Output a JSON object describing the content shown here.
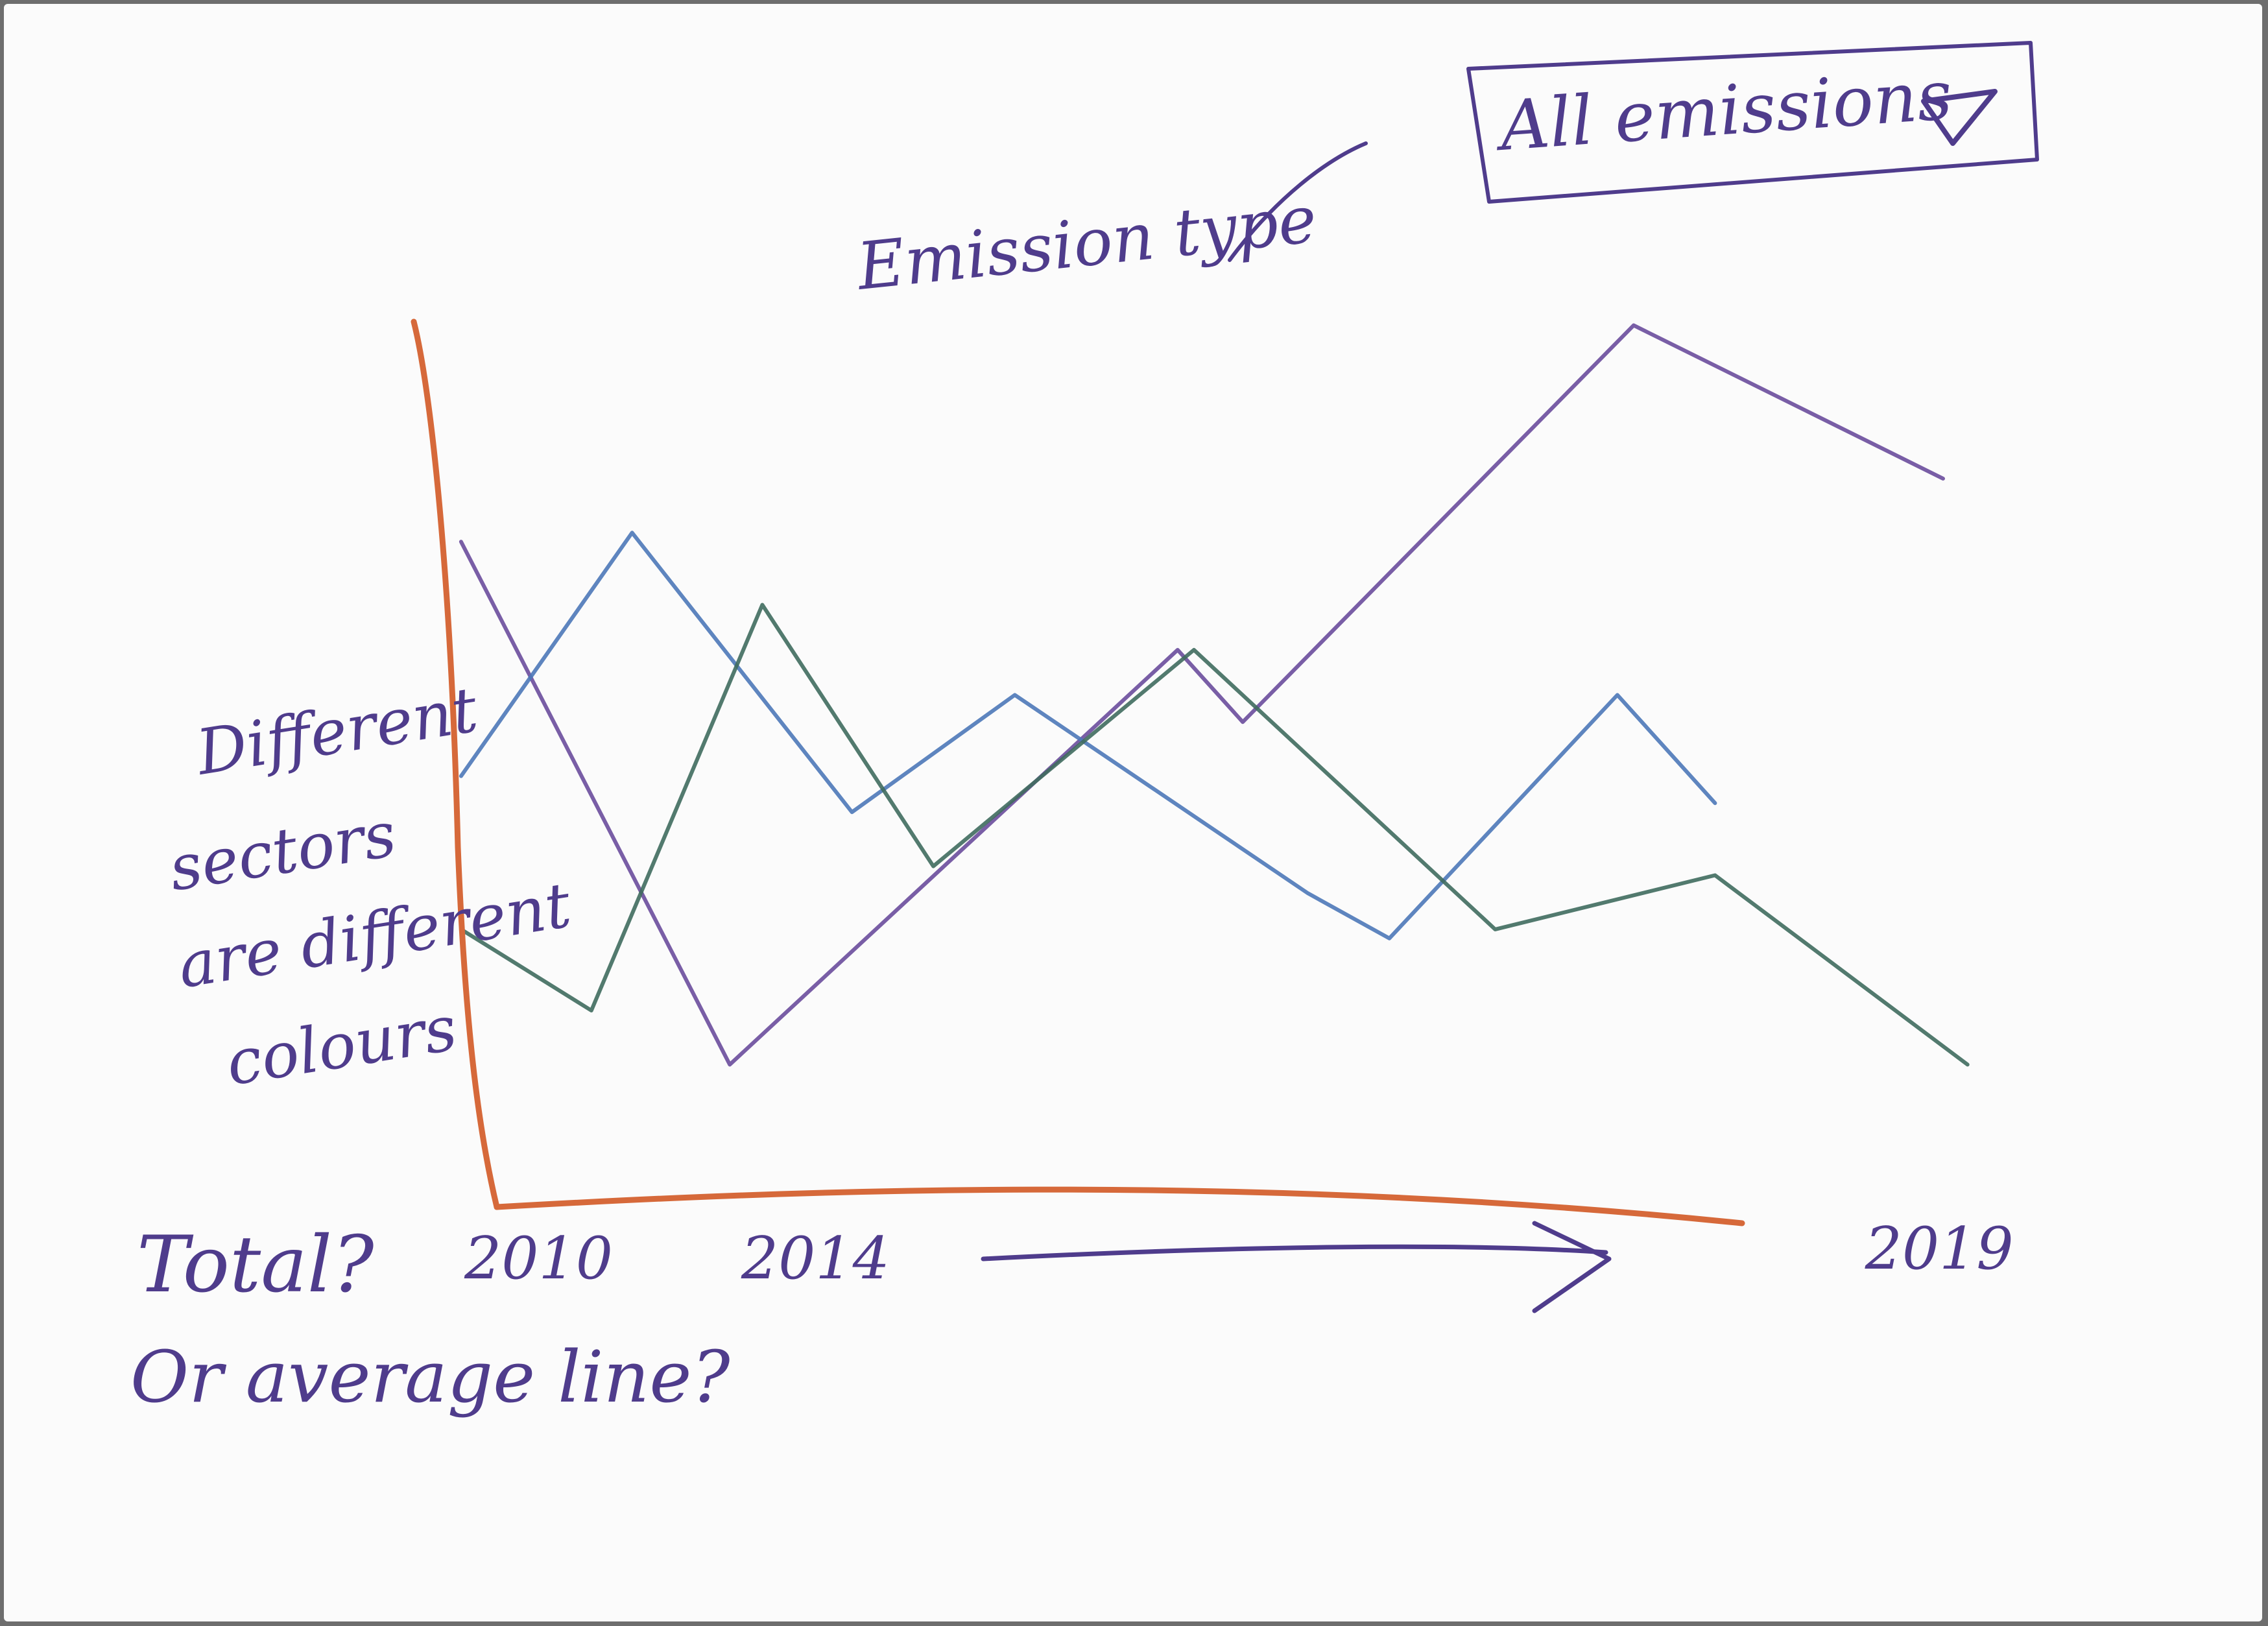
{
  "dropdown": {
    "selected": "All emissions",
    "icon": "triangle-down-icon"
  },
  "annotations": {
    "dropdown_note": "Emission type",
    "series_note_lines": [
      "Different",
      "sectors",
      "are different",
      "colours"
    ],
    "total_note": "Total?",
    "average_note": "Or average line?"
  },
  "colors": {
    "axis": "#d6693a",
    "ink": "#4f3c8c",
    "series_purple": "#6a4c9c",
    "series_blue": "#4d78b8",
    "series_green": "#3f6b5e"
  },
  "chart_data": {
    "type": "line",
    "title": "",
    "xlabel": "",
    "ylabel": "",
    "grid": false,
    "legend": "none",
    "x_ticks": [
      "2010",
      "2014",
      "2019"
    ],
    "x_range": [
      2010,
      2019
    ],
    "y_range": [
      0,
      100
    ],
    "series": [
      {
        "color": "#6a4c9c",
        "x": [
          2009.9,
          2011.55,
          2014.3,
          2014.7,
          2017.1,
          2019.0
        ],
        "y": [
          72,
          14,
          60,
          52,
          96,
          79
        ]
      },
      {
        "color": "#4d78b8",
        "x": [
          2009.9,
          2010.95,
          2012.3,
          2013.3,
          2015.1,
          2015.6,
          2017.0,
          2017.6
        ],
        "y": [
          46,
          73,
          42,
          55,
          33,
          28,
          55,
          43
        ]
      },
      {
        "color": "#3f6b5e",
        "x": [
          2009.9,
          2010.7,
          2011.75,
          2012.8,
          2014.4,
          2016.25,
          2017.6,
          2019.15
        ],
        "y": [
          29,
          20,
          65,
          36,
          60,
          29,
          35,
          14
        ]
      }
    ]
  }
}
